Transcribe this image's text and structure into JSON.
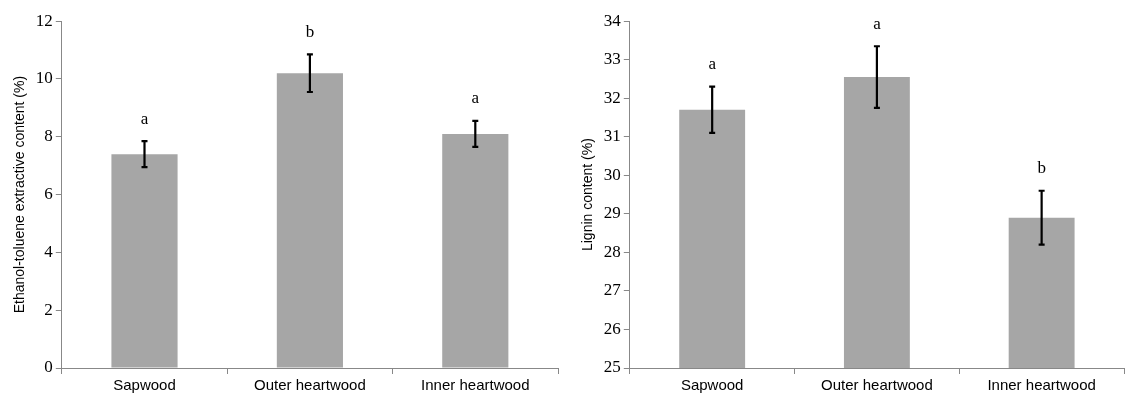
{
  "chart_data": [
    {
      "type": "bar",
      "ylabel": "Ethanol-toluene extractive content (%)",
      "categories": [
        "Sapwood",
        "Outer heartwood",
        "Inner heartwood"
      ],
      "values": [
        7.4,
        10.2,
        8.1
      ],
      "errors": [
        0.45,
        0.65,
        0.45
      ],
      "color": "#a6a6a6",
      "ylim": [
        0,
        12
      ],
      "yticks": [
        0,
        2,
        4,
        6,
        8,
        10,
        12
      ],
      "grid": false,
      "annotations": [
        "a",
        "b",
        "a"
      ]
    },
    {
      "type": "bar",
      "ylabel": "Lignin content (%)",
      "categories": [
        "Sapwood",
        "Outer heartwood",
        "Inner heartwood"
      ],
      "values": [
        31.7,
        32.55,
        28.9
      ],
      "errors": [
        0.6,
        0.8,
        0.7
      ],
      "color": "#a6a6a6",
      "ylim": [
        25,
        34
      ],
      "yticks": [
        25,
        26,
        27,
        28,
        29,
        30,
        31,
        32,
        33,
        34
      ],
      "grid": false,
      "annotations": [
        "a",
        "a",
        "b"
      ]
    }
  ]
}
